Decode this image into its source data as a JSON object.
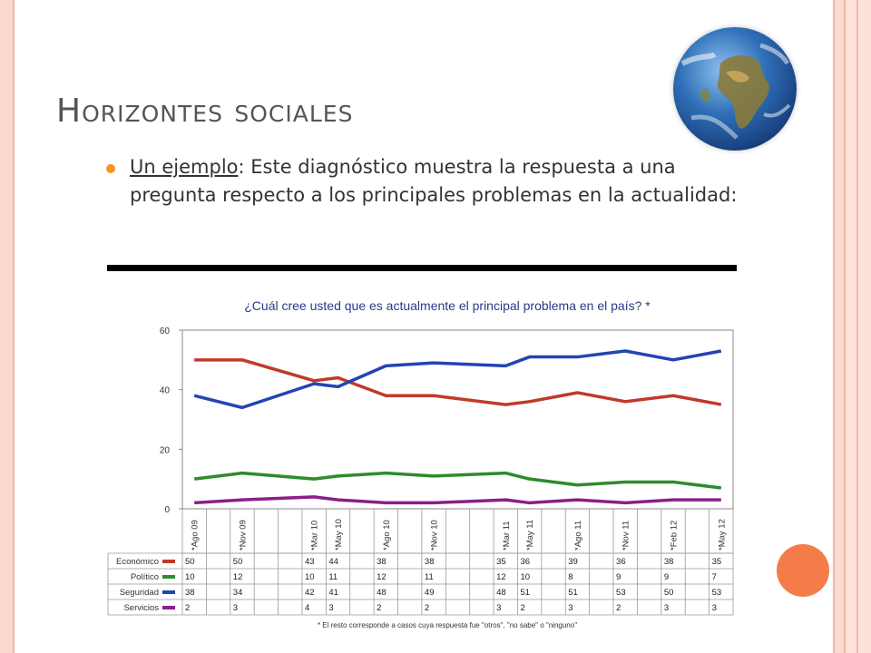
{
  "slide": {
    "title": "Horizontes sociales",
    "bullet_lead": "Un ejemplo",
    "bullet_colon": ":",
    "bullet_text": "  Este diagnóstico muestra la respuesta a una pregunta respecto a los principales problemas en la actualidad:",
    "globe_icon": "earth-globe-icon"
  },
  "chart_data": {
    "type": "line",
    "title": "¿Cuál cree usted que es actualmente el principal problema en el país? *",
    "footnote": "* El resto corresponde a casos cuya respuesta fue \"otros\", \"no sabe\" o \"ninguno\"",
    "x": [
      "*Ago 09",
      "*Nov 09",
      "*Mar 10",
      "*May 10",
      "*Ago 10",
      "*Nov 10",
      "*Mar 11",
      "*May 11",
      "*Ago 11",
      "*Nov 11",
      "*Feb 12",
      "*May 12"
    ],
    "x_slots": [
      0,
      2,
      5,
      6,
      8,
      10,
      13,
      14,
      16,
      18,
      20,
      22
    ],
    "total_slots": 23,
    "ylim": [
      0,
      60
    ],
    "yticks": [
      0,
      20,
      40,
      60
    ],
    "grid": false,
    "legend": "table-below",
    "series": [
      {
        "name": "Económico",
        "color": "#c0392b",
        "values": [
          50,
          50,
          43,
          44,
          38,
          38,
          35,
          36,
          39,
          36,
          38,
          35
        ]
      },
      {
        "name": "Político",
        "color": "#2e8b2e",
        "values": [
          10,
          12,
          10,
          11,
          12,
          11,
          12,
          10,
          8,
          9,
          9,
          7
        ]
      },
      {
        "name": "Seguridad",
        "color": "#2344b4",
        "values": [
          38,
          34,
          42,
          41,
          48,
          49,
          48,
          51,
          51,
          53,
          50,
          53
        ]
      },
      {
        "name": "Servicios",
        "color": "#8b1e8b",
        "values": [
          2,
          3,
          4,
          3,
          2,
          2,
          3,
          2,
          3,
          2,
          3,
          3
        ]
      }
    ]
  }
}
